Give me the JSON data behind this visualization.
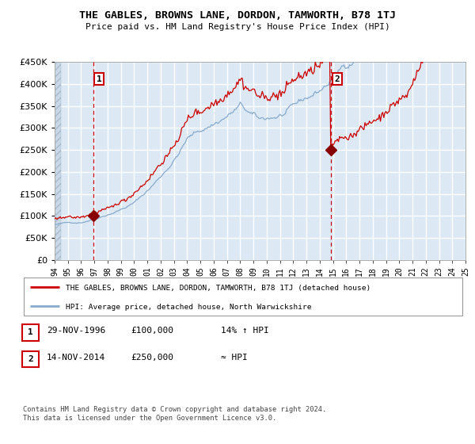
{
  "title": "THE GABLES, BROWNS LANE, DORDON, TAMWORTH, B78 1TJ",
  "subtitle": "Price paid vs. HM Land Registry's House Price Index (HPI)",
  "ylim": [
    0,
    450000
  ],
  "yticks": [
    0,
    50000,
    100000,
    150000,
    200000,
    250000,
    300000,
    350000,
    400000,
    450000
  ],
  "sale1_date_num": 1996.91,
  "sale1_price": 100000,
  "sale2_date_num": 2014.87,
  "sale2_price": 250000,
  "sale1_label": "1",
  "sale2_label": "2",
  "legend_property": "THE GABLES, BROWNS LANE, DORDON, TAMWORTH, B78 1TJ (detached house)",
  "legend_hpi": "HPI: Average price, detached house, North Warwickshire",
  "table_row1": [
    "1",
    "29-NOV-1996",
    "£100,000",
    "14% ↑ HPI"
  ],
  "table_row2": [
    "2",
    "14-NOV-2014",
    "£250,000",
    "≈ HPI"
  ],
  "footer": "Contains HM Land Registry data © Crown copyright and database right 2024.\nThis data is licensed under the Open Government Licence v3.0.",
  "bg_color": "#dce9f5",
  "line_color_property": "#cc0000",
  "line_color_hpi": "#88aacc",
  "vline_color": "#cc0000",
  "marker_color": "#880000",
  "grid_color": "#ffffff",
  "xstart": 1994,
  "xend": 2025
}
